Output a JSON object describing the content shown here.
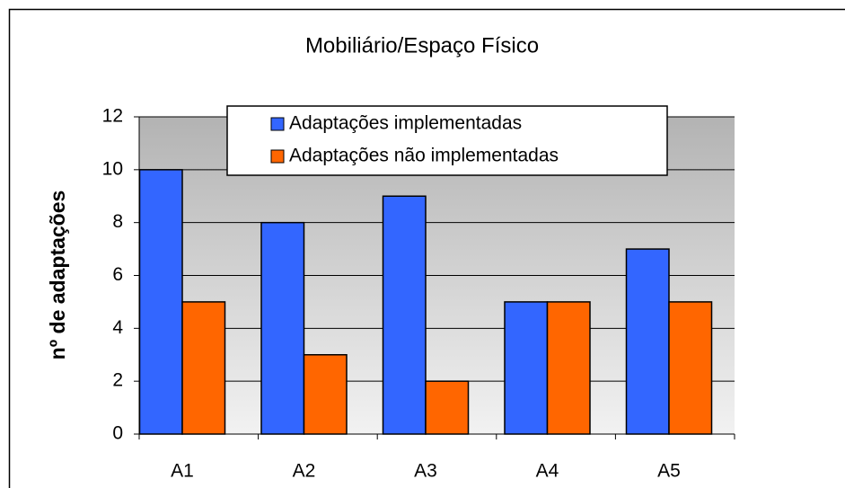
{
  "chart_data": {
    "type": "bar",
    "title": "Mobiliário/Espaço Físico",
    "ylabel": "nº de adaptações",
    "categories": [
      "A1",
      "A2",
      "A3",
      "A4",
      "A5"
    ],
    "series": [
      {
        "name": "Adaptações implementadas",
        "color": "#3366ff",
        "values": [
          10,
          8,
          9,
          5,
          7
        ]
      },
      {
        "name": "Adaptações não implementadas",
        "color": "#ff6600",
        "values": [
          5,
          3,
          2,
          5,
          5
        ]
      }
    ],
    "ylim": [
      0,
      12
    ],
    "yticks": [
      0,
      2,
      4,
      6,
      8,
      10,
      12
    ],
    "grid": true
  }
}
